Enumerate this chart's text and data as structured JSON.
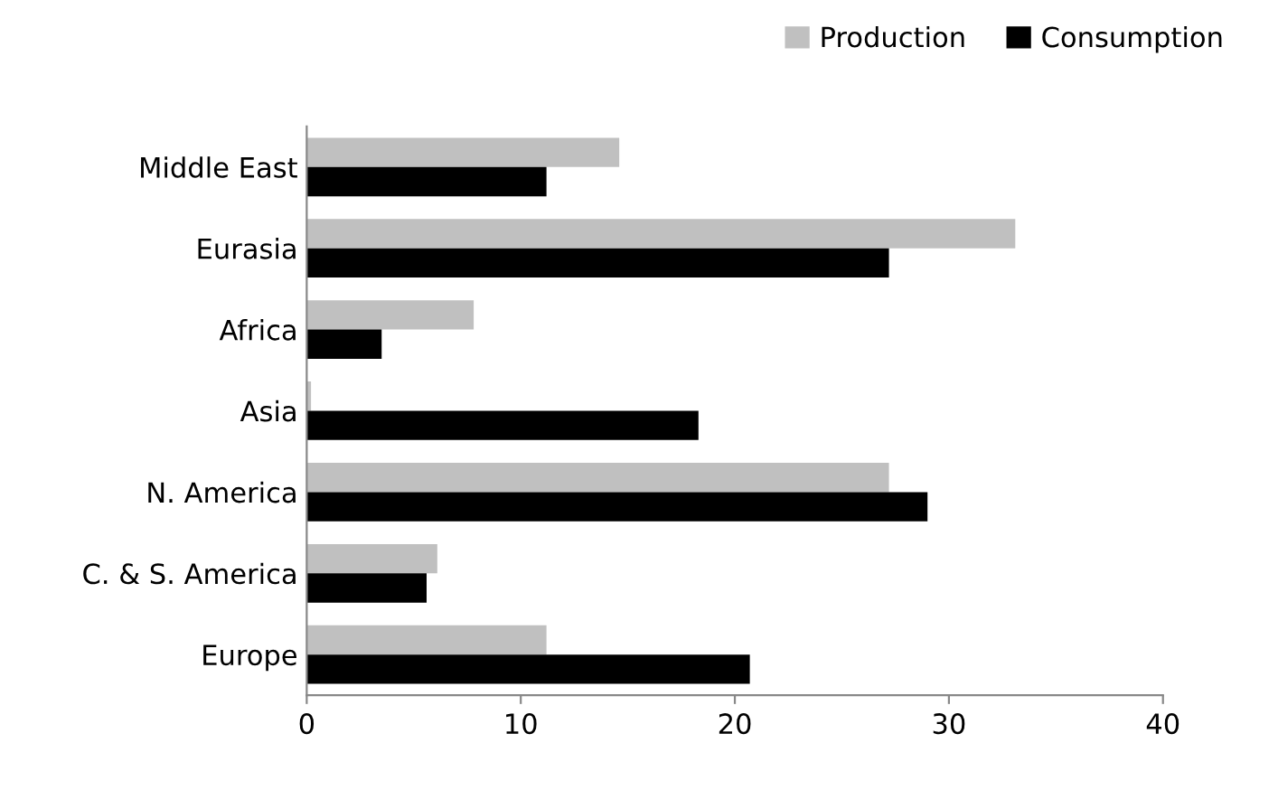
{
  "chart_data": {
    "type": "bar",
    "orientation": "horizontal",
    "categories": [
      "Middle East",
      "Eurasia",
      "Africa",
      "Asia",
      "N. America",
      "C. & S. America",
      "Europe"
    ],
    "series": [
      {
        "name": "Production",
        "color": "#c0c0c0",
        "values": [
          14.6,
          33.1,
          7.8,
          0.2,
          27.2,
          6.1,
          11.2
        ]
      },
      {
        "name": "Consumption",
        "color": "#000000",
        "values": [
          11.2,
          27.2,
          3.5,
          18.3,
          29.0,
          5.6,
          20.7
        ]
      }
    ],
    "xlim": [
      0,
      40
    ],
    "xticks": [
      0,
      10,
      20,
      30,
      40
    ],
    "grid": false,
    "legend": "top right"
  }
}
